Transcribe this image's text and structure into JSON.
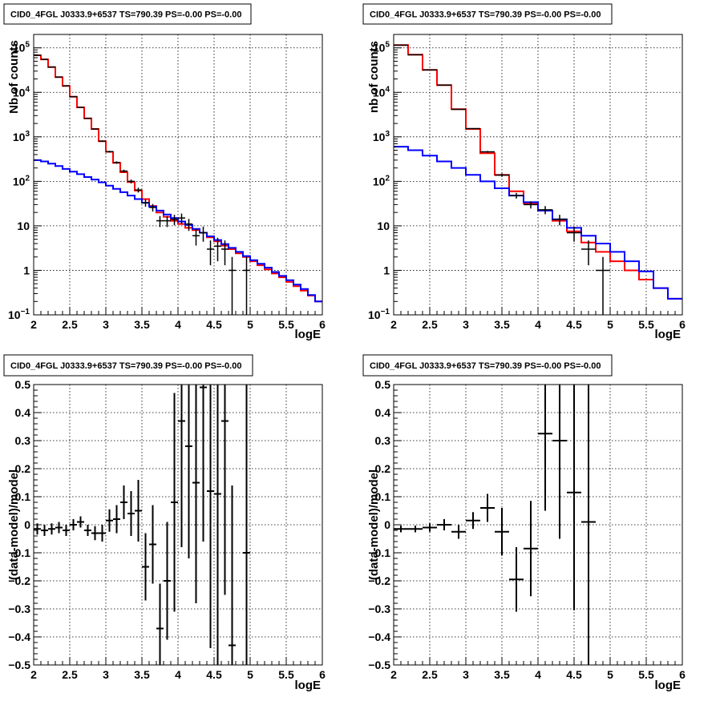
{
  "chart_data": [
    {
      "type": "line",
      "title": "CID0_4FGL J0333.9+6537 TS=790.39 PS=-0.00 PS=-0.00",
      "xlabel": "logE",
      "ylabel": "Nb of counts",
      "log_y": true,
      "xlim": [
        2,
        6
      ],
      "ylim": [
        0.1,
        200000
      ],
      "grid": true,
      "x_ticks": [
        "2",
        "2.5",
        "3",
        "3.5",
        "4",
        "4.5",
        "5",
        "5.5",
        "6"
      ],
      "y_ticks": [
        {
          "v": 0.1,
          "base": "10",
          "exp": "−1"
        },
        {
          "v": 1,
          "base": "1",
          "exp": ""
        },
        {
          "v": 10,
          "base": "10",
          "exp": ""
        },
        {
          "v": 100,
          "base": "10",
          "exp": "2"
        },
        {
          "v": 1000,
          "base": "10",
          "exp": "3"
        },
        {
          "v": 10000,
          "base": "10",
          "exp": "4"
        },
        {
          "v": 100000,
          "base": "10",
          "exp": "5"
        }
      ],
      "bin_width": 0.1,
      "series": [
        {
          "role": "model",
          "color": "#ff0000",
          "values": [
            68000,
            55000,
            37000,
            22000,
            14000,
            8000,
            4600,
            2600,
            1500,
            800,
            460,
            260,
            160,
            96,
            62,
            40,
            28,
            20,
            16,
            13,
            11,
            9,
            8,
            7,
            5.5,
            4.5,
            3.6,
            3,
            2.4,
            2,
            1.6,
            1.3,
            1.05,
            0.85,
            0.7,
            0.55,
            0.44,
            0.35,
            0.27,
            0.2
          ]
        },
        {
          "role": "background",
          "color": "#0000ff",
          "values": [
            300,
            280,
            250,
            220,
            190,
            165,
            145,
            125,
            110,
            95,
            80,
            68,
            57,
            48,
            40,
            33,
            27,
            22,
            18,
            15,
            12.5,
            10.5,
            8.5,
            7,
            5.8,
            4.8,
            3.9,
            3.2,
            2.6,
            2.1,
            1.7,
            1.4,
            1.15,
            0.92,
            0.75,
            0.6,
            0.48,
            0.38,
            0.28,
            0.2
          ]
        },
        {
          "role": "data",
          "color": "#000000",
          "points": [
            {
              "x": 2.05,
              "y": 68000,
              "lo": 67500,
              "hi": 68500
            },
            {
              "x": 2.15,
              "y": 55000,
              "lo": 54500,
              "hi": 55500
            },
            {
              "x": 2.25,
              "y": 37000,
              "lo": 36600,
              "hi": 37400
            },
            {
              "x": 2.35,
              "y": 22000,
              "lo": 21700,
              "hi": 22300
            },
            {
              "x": 2.45,
              "y": 14000,
              "lo": 13800,
              "hi": 14200
            },
            {
              "x": 2.55,
              "y": 8000,
              "lo": 7900,
              "hi": 8100
            },
            {
              "x": 2.65,
              "y": 4600,
              "lo": 4530,
              "hi": 4670
            },
            {
              "x": 2.75,
              "y": 2600,
              "lo": 2550,
              "hi": 2650
            },
            {
              "x": 2.85,
              "y": 1500,
              "lo": 1460,
              "hi": 1540
            },
            {
              "x": 2.95,
              "y": 800,
              "lo": 770,
              "hi": 830
            },
            {
              "x": 3.05,
              "y": 465,
              "lo": 444,
              "hi": 486
            },
            {
              "x": 3.15,
              "y": 265,
              "lo": 249,
              "hi": 281
            },
            {
              "x": 3.25,
              "y": 170,
              "lo": 157,
              "hi": 183
            },
            {
              "x": 3.35,
              "y": 100,
              "lo": 90,
              "hi": 110
            },
            {
              "x": 3.45,
              "y": 64,
              "lo": 56,
              "hi": 72
            },
            {
              "x": 3.55,
              "y": 33,
              "lo": 27,
              "hi": 39
            },
            {
              "x": 3.65,
              "y": 26,
              "lo": 21,
              "hi": 31
            },
            {
              "x": 3.75,
              "y": 13,
              "lo": 9.4,
              "hi": 16.6
            },
            {
              "x": 3.85,
              "y": 13,
              "lo": 9.4,
              "hi": 16.6
            },
            {
              "x": 3.95,
              "y": 14,
              "lo": 10.3,
              "hi": 17.7
            },
            {
              "x": 4.05,
              "y": 15,
              "lo": 11.1,
              "hi": 18.9
            },
            {
              "x": 4.15,
              "y": 11,
              "lo": 7.7,
              "hi": 14.3
            },
            {
              "x": 4.25,
              "y": 6,
              "lo": 3.6,
              "hi": 8.4
            },
            {
              "x": 4.35,
              "y": 7,
              "lo": 4.4,
              "hi": 9.6
            },
            {
              "x": 4.45,
              "y": 3,
              "lo": 1.3,
              "hi": 4.7
            },
            {
              "x": 4.55,
              "y": 3.5,
              "lo": 1.6,
              "hi": 5.4
            },
            {
              "x": 4.65,
              "y": 3,
              "lo": 1.3,
              "hi": 4.7
            },
            {
              "x": 4.75,
              "y": 1,
              "lo": 0.01,
              "hi": 2
            },
            {
              "x": 4.95,
              "y": 1,
              "lo": 0.01,
              "hi": 2
            }
          ]
        }
      ]
    },
    {
      "type": "line",
      "title": "CID0_4FGL J0333.9+6537 TS=790.39 PS=-0.00 PS=-0.00",
      "xlabel": "logE",
      "ylabel": "nb of counts",
      "log_y": true,
      "xlim": [
        2,
        6
      ],
      "ylim": [
        0.1,
        200000
      ],
      "grid": true,
      "x_ticks": [
        "2",
        "2.5",
        "3",
        "3.5",
        "4",
        "4.5",
        "5",
        "5.5",
        "6"
      ],
      "y_ticks": [
        {
          "v": 0.1,
          "base": "10",
          "exp": "−1"
        },
        {
          "v": 1,
          "base": "1",
          "exp": ""
        },
        {
          "v": 10,
          "base": "10",
          "exp": ""
        },
        {
          "v": 100,
          "base": "10",
          "exp": "2"
        },
        {
          "v": 1000,
          "base": "10",
          "exp": "3"
        },
        {
          "v": 10000,
          "base": "10",
          "exp": "4"
        },
        {
          "v": 100000,
          "base": "10",
          "exp": "5"
        }
      ],
      "bin_width": 0.2,
      "series": [
        {
          "role": "model",
          "color": "#ff0000",
          "values": [
            115000,
            70000,
            32000,
            14500,
            4200,
            1500,
            430,
            140,
            60,
            32,
            22,
            13,
            7.5,
            4.2,
            2.6,
            1.6,
            1,
            0.62,
            0.4,
            0.23
          ]
        },
        {
          "role": "background",
          "color": "#0000ff",
          "values": [
            600,
            500,
            380,
            280,
            200,
            140,
            100,
            70,
            48,
            34,
            22,
            14,
            9,
            6,
            4,
            2.6,
            1.6,
            0.95,
            0.4,
            0.23
          ]
        },
        {
          "role": "data",
          "color": "#000000",
          "points": [
            {
              "x": 2.1,
              "y": 115000,
              "lo": 114500,
              "hi": 115500
            },
            {
              "x": 2.3,
              "y": 70000,
              "lo": 69600,
              "hi": 70400
            },
            {
              "x": 2.5,
              "y": 32000,
              "lo": 31700,
              "hi": 32300
            },
            {
              "x": 2.7,
              "y": 14500,
              "lo": 14300,
              "hi": 14700
            },
            {
              "x": 2.9,
              "y": 4150,
              "lo": 4080,
              "hi": 4220
            },
            {
              "x": 3.1,
              "y": 1530,
              "lo": 1490,
              "hi": 1570
            },
            {
              "x": 3.3,
              "y": 460,
              "lo": 438,
              "hi": 482
            },
            {
              "x": 3.5,
              "y": 138,
              "lo": 126,
              "hi": 150
            },
            {
              "x": 3.7,
              "y": 48,
              "lo": 41,
              "hi": 55
            },
            {
              "x": 3.9,
              "y": 30,
              "lo": 24.5,
              "hi": 35.5
            },
            {
              "x": 4.1,
              "y": 23,
              "lo": 18.2,
              "hi": 27.8
            },
            {
              "x": 4.3,
              "y": 14,
              "lo": 10.3,
              "hi": 17.7
            },
            {
              "x": 4.5,
              "y": 7,
              "lo": 4.4,
              "hi": 9.6
            },
            {
              "x": 4.7,
              "y": 3,
              "lo": 1.3,
              "hi": 4.7
            },
            {
              "x": 4.9,
              "y": 1,
              "lo": 0.01,
              "hi": 2
            }
          ]
        }
      ]
    },
    {
      "type": "scatter",
      "title": "CID0_4FGL J0333.9+6537 TS=790.39 PS=-0.00 PS=-0.00",
      "xlabel": "logE",
      "ylabel": "(data-model)/model",
      "log_y": false,
      "xlim": [
        2,
        6
      ],
      "ylim": [
        -0.5,
        0.5
      ],
      "grid": true,
      "x_ticks": [
        "2",
        "2.5",
        "3",
        "3.5",
        "4",
        "4.5",
        "5",
        "5.5",
        "6"
      ],
      "y_ticks": [
        "−0.5",
        "−0.4",
        "−0.3",
        "−0.2",
        "−0.1",
        "0",
        "0.1",
        "0.2",
        "0.3",
        "0.4",
        "0.5"
      ],
      "bin_width": 0.1,
      "points": [
        {
          "x": 2.05,
          "y": -0.015,
          "err": 0.02
        },
        {
          "x": 2.15,
          "y": -0.02,
          "err": 0.02
        },
        {
          "x": 2.25,
          "y": -0.015,
          "err": 0.02
        },
        {
          "x": 2.35,
          "y": -0.01,
          "err": 0.02
        },
        {
          "x": 2.45,
          "y": -0.02,
          "err": 0.02
        },
        {
          "x": 2.55,
          "y": 0.0,
          "err": 0.02
        },
        {
          "x": 2.65,
          "y": 0.01,
          "err": 0.02
        },
        {
          "x": 2.75,
          "y": -0.02,
          "err": 0.02
        },
        {
          "x": 2.85,
          "y": -0.03,
          "err": 0.025
        },
        {
          "x": 2.95,
          "y": -0.03,
          "err": 0.03
        },
        {
          "x": 3.05,
          "y": 0.015,
          "err": 0.04
        },
        {
          "x": 3.15,
          "y": 0.02,
          "err": 0.05
        },
        {
          "x": 3.25,
          "y": 0.08,
          "err": 0.06
        },
        {
          "x": 3.35,
          "y": 0.04,
          "err": 0.08
        },
        {
          "x": 3.45,
          "y": 0.05,
          "err": 0.11
        },
        {
          "x": 3.55,
          "y": -0.15,
          "err": 0.12
        },
        {
          "x": 3.65,
          "y": -0.07,
          "err": 0.14
        },
        {
          "x": 3.75,
          "y": -0.37,
          "err": 0.16
        },
        {
          "x": 3.85,
          "y": -0.2,
          "err": 0.21
        },
        {
          "x": 3.95,
          "y": 0.08,
          "err": 0.39
        },
        {
          "x": 4.05,
          "y": 0.37,
          "err": 0.45
        },
        {
          "x": 4.15,
          "y": 0.28,
          "err": 0.4
        },
        {
          "x": 4.25,
          "y": 0.15,
          "err": 0.43
        },
        {
          "x": 4.35,
          "y": 0.49,
          "err": 0.55
        },
        {
          "x": 4.45,
          "y": 0.12,
          "err": 0.56
        },
        {
          "x": 4.55,
          "y": 0.11,
          "err": 0.72
        },
        {
          "x": 4.65,
          "y": 0.37,
          "err": 0.62
        },
        {
          "x": 4.75,
          "y": -0.43,
          "err": 0.57
        },
        {
          "x": 4.95,
          "y": -0.1,
          "err": 1.0
        }
      ]
    },
    {
      "type": "scatter",
      "title": "CID0_4FGL J0333.9+6537 TS=790.39 PS=-0.00 PS=-0.00",
      "xlabel": "logE",
      "ylabel": "(data-model)/model",
      "log_y": false,
      "xlim": [
        2,
        6
      ],
      "ylim": [
        -0.5,
        0.5
      ],
      "grid": true,
      "x_ticks": [
        "2",
        "2.5",
        "3",
        "3.5",
        "4",
        "4.5",
        "5",
        "5.5",
        "6"
      ],
      "y_ticks": [
        "−0.5",
        "−0.4",
        "−0.3",
        "−0.2",
        "−0.1",
        "0",
        "0.1",
        "0.2",
        "0.3",
        "0.4",
        "0.5"
      ],
      "bin_width": 0.2,
      "points": [
        {
          "x": 2.1,
          "y": -0.015,
          "err": 0.012
        },
        {
          "x": 2.3,
          "y": -0.015,
          "err": 0.012
        },
        {
          "x": 2.5,
          "y": -0.01,
          "err": 0.015
        },
        {
          "x": 2.7,
          "y": 0.0,
          "err": 0.02
        },
        {
          "x": 2.9,
          "y": -0.025,
          "err": 0.025
        },
        {
          "x": 3.1,
          "y": 0.015,
          "err": 0.03
        },
        {
          "x": 3.3,
          "y": 0.06,
          "err": 0.05
        },
        {
          "x": 3.5,
          "y": -0.025,
          "err": 0.085
        },
        {
          "x": 3.7,
          "y": -0.195,
          "err": 0.115
        },
        {
          "x": 3.9,
          "y": -0.085,
          "err": 0.17
        },
        {
          "x": 4.1,
          "y": 0.325,
          "err": 0.275
        },
        {
          "x": 4.3,
          "y": 0.3,
          "err": 0.35
        },
        {
          "x": 4.5,
          "y": 0.115,
          "err": 0.42
        },
        {
          "x": 4.7,
          "y": 0.01,
          "err": 1.0
        }
      ]
    }
  ]
}
